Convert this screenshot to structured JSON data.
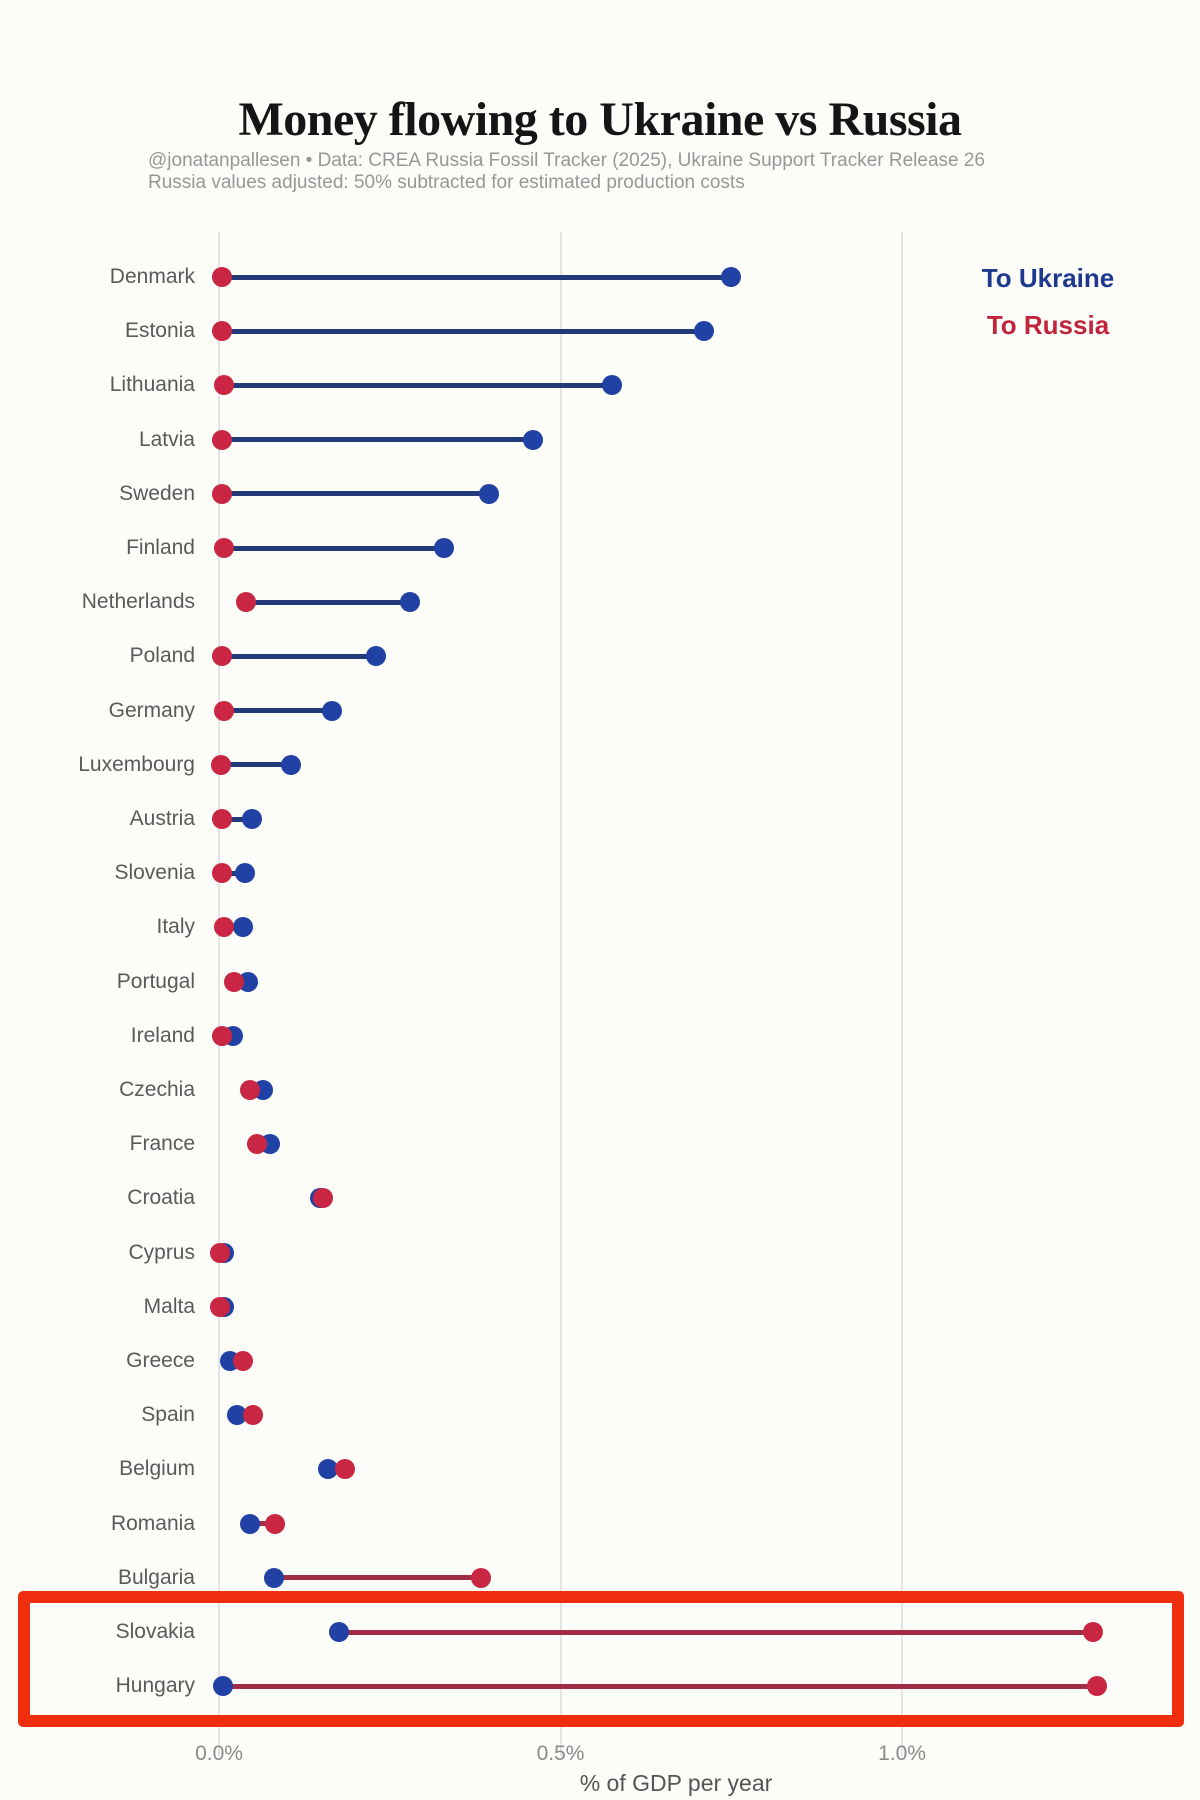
{
  "header": {
    "title": "Money flowing to Ukraine vs Russia",
    "subtitle_line1": "@jonatanpallesen  •  Data: CREA Russia Fossil Tracker (2025), Ukraine Support Tracker Release 26",
    "subtitle_line2": "Russia values adjusted: 50% subtracted for estimated production costs"
  },
  "colors": {
    "background": "#fcfcf9",
    "ukraine_dot": "#2141a5",
    "russia_dot": "#c92643",
    "ukraine_line": "#223a77",
    "russia_line": "#a12c47",
    "legend_ukraine_text": "#1d3a8f",
    "legend_russia_text": "#c0253c",
    "grid": "#e4e4e4",
    "annotation_box": "#ee2e0e"
  },
  "chart_data": {
    "type": "scatter",
    "variant": "dumbbell-lollipop",
    "title": "Money flowing to Ukraine vs Russia",
    "xlabel": "% of GDP per year",
    "ylabel": "",
    "xlim": [
      -0.08,
      1.38
    ],
    "grid": "vertical-only",
    "legend_position": "top-right",
    "x_ticks": [
      {
        "label": "0.0%",
        "value": 0.0
      },
      {
        "label": "0.5%",
        "value": 0.5
      },
      {
        "label": "1.0%",
        "value": 1.0
      }
    ],
    "categories": [
      "Denmark",
      "Estonia",
      "Lithuania",
      "Latvia",
      "Sweden",
      "Finland",
      "Netherlands",
      "Poland",
      "Germany",
      "Luxembourg",
      "Austria",
      "Slovenia",
      "Italy",
      "Portugal",
      "Ireland",
      "Czechia",
      "France",
      "Croatia",
      "Cyprus",
      "Malta",
      "Greece",
      "Spain",
      "Belgium",
      "Romania",
      "Bulgaria",
      "Slovakia",
      "Hungary"
    ],
    "series": [
      {
        "name": "To Ukraine",
        "unit": "% of GDP per year",
        "values": [
          0.75,
          0.71,
          0.575,
          0.46,
          0.395,
          0.33,
          0.28,
          0.23,
          0.165,
          0.105,
          0.048,
          0.038,
          0.035,
          0.043,
          0.02,
          0.065,
          0.075,
          0.148,
          0.007,
          0.007,
          0.016,
          0.026,
          0.16,
          0.046,
          0.08,
          0.175,
          0.006
        ]
      },
      {
        "name": "To Russia",
        "unit": "% of GDP per year",
        "values": [
          0.005,
          0.005,
          0.007,
          0.005,
          0.005,
          0.007,
          0.04,
          0.005,
          0.007,
          0.003,
          0.004,
          0.004,
          0.008,
          0.022,
          0.004,
          0.045,
          0.056,
          0.152,
          0.002,
          0.002,
          0.035,
          0.05,
          0.185,
          0.082,
          0.383,
          1.28,
          1.285
        ]
      }
    ]
  },
  "annotation": {
    "type": "highlight-box",
    "highlighted_rows": [
      "Slovakia",
      "Hungary"
    ]
  }
}
